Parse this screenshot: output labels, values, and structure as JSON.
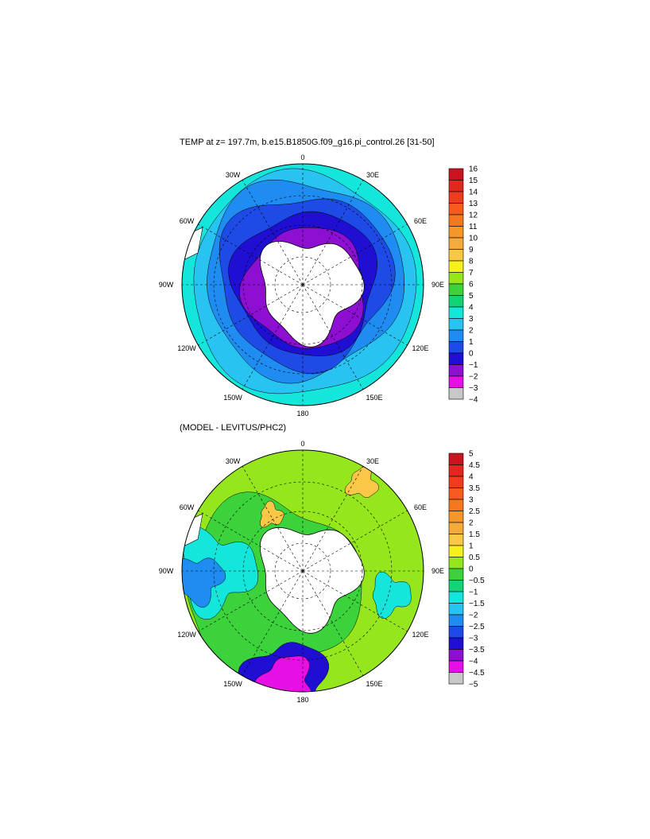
{
  "page_bg": "#ffffff",
  "panels": [
    {
      "id": "temp",
      "title": "TEMP at z= 197.7m, b.e15.B1850G.f09_g16.pi_control.26 [31-50]",
      "lon_labels": {
        "top": "0",
        "bottom": "180",
        "left": "90W",
        "right": "90E",
        "ul": "30W",
        "ur": "30E",
        "ml": "60W",
        "mr": "60E",
        "ll": "120W",
        "lr": "120E",
        "bl": "150W",
        "br": "150E"
      },
      "colorbar": {
        "labels": [
          "16",
          "15",
          "14",
          "13",
          "12",
          "11",
          "10",
          "9",
          "8",
          "7",
          "6",
          "5",
          "4",
          "3",
          "2",
          "1",
          "0",
          "−1",
          "−2",
          "−3",
          "−4"
        ],
        "colors": [
          "#c8141e",
          "#e0281e",
          "#f03c1e",
          "#f55a1e",
          "#f5781e",
          "#f59628",
          "#f5aa3c",
          "#fac846",
          "#f5f01e",
          "#96e61e",
          "#3cd23c",
          "#14d278",
          "#14e6dc",
          "#28c3f0",
          "#1e8cf0",
          "#1e4be6",
          "#1e0fd2",
          "#8c0fd2",
          "#e60fe6",
          "#c8c8c8",
          "#646464"
        ]
      }
    },
    {
      "id": "diff",
      "title": "(MODEL - LEVITUS/PHC2)",
      "lon_labels": {
        "top": "0",
        "bottom": "180",
        "left": "90W",
        "right": "90E",
        "ul": "30W",
        "ur": "30E",
        "ml": "60W",
        "mr": "60E",
        "ll": "120W",
        "lr": "120E",
        "bl": "150W",
        "br": "150E"
      },
      "colorbar": {
        "labels": [
          "5",
          "4.5",
          "4",
          "3.5",
          "3",
          "2.5",
          "2",
          "1.5",
          "1",
          "0.5",
          "0",
          "−0.5",
          "−1",
          "−1.5",
          "−2",
          "−2.5",
          "−3",
          "−3.5",
          "−4",
          "−4.5",
          "−5"
        ],
        "colors": [
          "#c8141e",
          "#e0281e",
          "#f03c1e",
          "#f55a1e",
          "#f5781e",
          "#f59628",
          "#f5aa3c",
          "#fac846",
          "#f5f01e",
          "#96e61e",
          "#3cd23c",
          "#14d278",
          "#14e6dc",
          "#28c3f0",
          "#1e8cf0",
          "#1e4be6",
          "#1e0fd2",
          "#8c0fd2",
          "#e60fe6",
          "#c8c8c8",
          "#646464"
        ]
      }
    }
  ]
}
